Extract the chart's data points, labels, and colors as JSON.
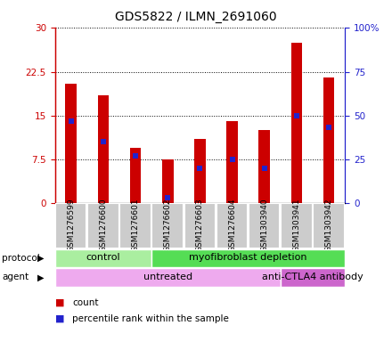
{
  "title": "GDS5822 / ILMN_2691060",
  "samples": [
    "GSM1276599",
    "GSM1276600",
    "GSM1276601",
    "GSM1276602",
    "GSM1276603",
    "GSM1276604",
    "GSM1303940",
    "GSM1303941",
    "GSM1303942"
  ],
  "counts": [
    20.5,
    18.5,
    9.5,
    7.5,
    11.0,
    14.0,
    12.5,
    27.5,
    21.5
  ],
  "percentiles": [
    47,
    35,
    27,
    3,
    20,
    25,
    20,
    50,
    43
  ],
  "ylim_left": [
    0,
    30
  ],
  "ylim_right": [
    0,
    100
  ],
  "yticks_left": [
    0,
    7.5,
    15,
    22.5,
    30
  ],
  "yticks_right": [
    0,
    25,
    50,
    75,
    100
  ],
  "ytick_labels_left": [
    "0",
    "7.5",
    "15",
    "22.5",
    "30"
  ],
  "ytick_labels_right": [
    "0",
    "25",
    "50",
    "75",
    "100%"
  ],
  "bar_color": "#cc0000",
  "dot_color": "#2222cc",
  "bar_width": 0.35,
  "protocol_groups": [
    {
      "label": "control",
      "start": 0,
      "end": 3,
      "color": "#aaeea0"
    },
    {
      "label": "myofibroblast depletion",
      "start": 3,
      "end": 9,
      "color": "#55dd55"
    }
  ],
  "agent_groups": [
    {
      "label": "untreated",
      "start": 0,
      "end": 7,
      "color": "#eeaaee"
    },
    {
      "label": "anti-CTLA4 antibody",
      "start": 7,
      "end": 9,
      "color": "#cc66cc"
    }
  ],
  "title_fontsize": 10,
  "tick_fontsize": 7.5,
  "label_fontsize": 7.5,
  "sample_fontsize": 6.5,
  "group_fontsize": 8
}
